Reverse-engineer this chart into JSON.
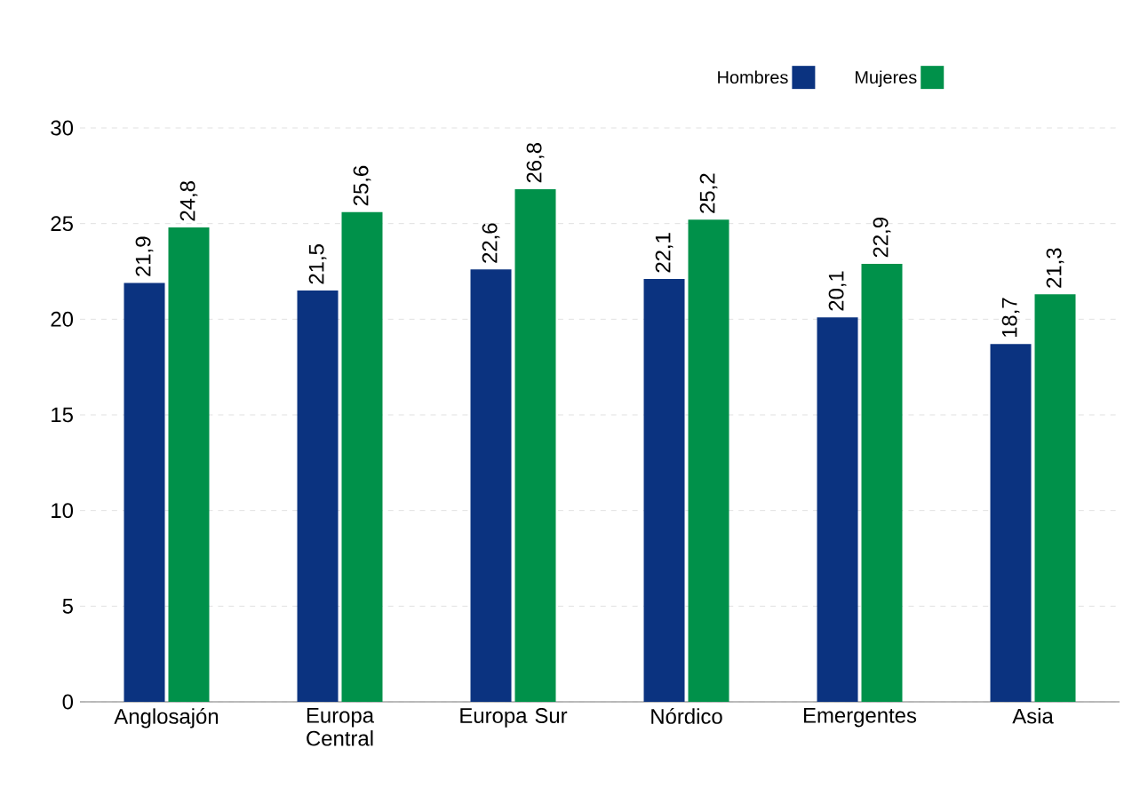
{
  "chart_data": {
    "type": "bar",
    "categories": [
      "Anglosajón",
      "Europa Central",
      "Europa Sur",
      "Nórdico",
      "Emergentes",
      "Asia"
    ],
    "series": [
      {
        "name": "Hombres",
        "color": "#0b3380",
        "values": [
          21.9,
          21.5,
          22.6,
          22.1,
          20.1,
          18.7
        ],
        "value_labels": [
          "21,9",
          "21,5",
          "22,6",
          "22,1",
          "20,1",
          "18,7"
        ]
      },
      {
        "name": "Mujeres",
        "color": "#00914a",
        "values": [
          24.8,
          25.6,
          26.8,
          25.2,
          22.9,
          21.3
        ],
        "value_labels": [
          "24,8",
          "25,6",
          "26,8",
          "25,2",
          "22,9",
          "21,3"
        ]
      }
    ],
    "ylim": [
      0,
      30
    ],
    "yticks": [
      0,
      5,
      10,
      15,
      20,
      25,
      30
    ],
    "grid": "y",
    "legend": "top"
  }
}
